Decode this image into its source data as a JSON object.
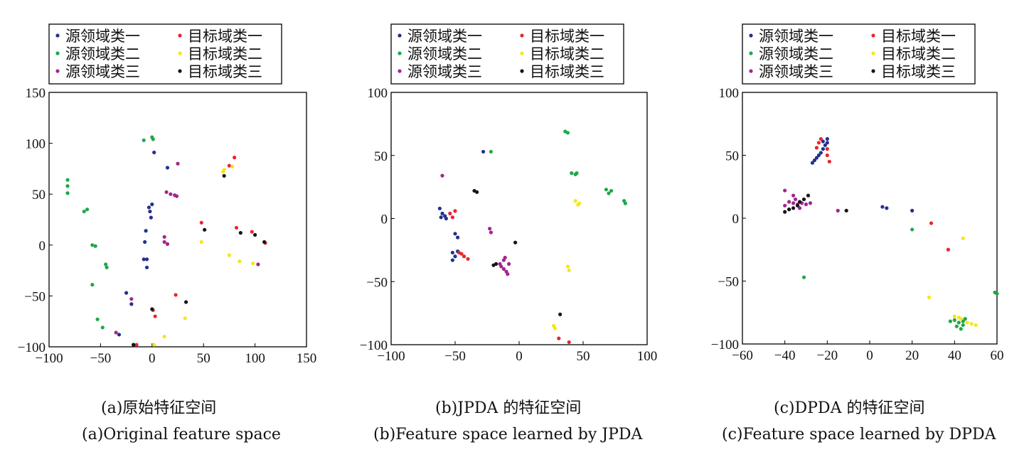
{
  "colors": {
    "src1": "#23318f",
    "src2": "#1fa84a",
    "src3": "#a3258f",
    "tgt1": "#e8262c",
    "tgt2": "#f4e61d",
    "tgt3": "#151515"
  },
  "chart_data": [
    {
      "type": "scatter",
      "xlim": [
        -100,
        150
      ],
      "ylim": [
        -100,
        150
      ],
      "xticks": [
        -100,
        -50,
        0,
        50,
        100,
        150
      ],
      "yticks": [
        -100,
        -50,
        0,
        50,
        100,
        150
      ],
      "tick_labels_x": [
        "−100",
        "−50",
        "0",
        "50",
        "100",
        "150"
      ],
      "tick_labels_y": [
        "−100",
        "−50",
        "0",
        "50",
        "100",
        "150"
      ],
      "legend_position": "top-outside",
      "caption_zh": "(a)原始特征空间",
      "caption_en": "(a)Original feature space",
      "series": [
        {
          "name": "源领域类一",
          "color_key": "src1",
          "points": [
            [
              2,
              91
            ],
            [
              15,
              76
            ],
            [
              -3,
              37
            ],
            [
              0,
              40
            ],
            [
              -2,
              33
            ],
            [
              -1,
              27
            ],
            [
              -6,
              14
            ],
            [
              -7,
              3
            ],
            [
              -8,
              -14
            ],
            [
              -5,
              -14
            ],
            [
              -5,
              -22
            ],
            [
              -25,
              -47
            ],
            [
              -20,
              -58
            ],
            [
              -32,
              -88
            ],
            [
              -18,
              -98
            ]
          ]
        },
        {
          "name": "源领域类二",
          "color_key": "src2",
          "points": [
            [
              -8,
              103
            ],
            [
              0,
              106
            ],
            [
              1,
              104
            ],
            [
              -82,
              64
            ],
            [
              -82,
              58
            ],
            [
              -82,
              51
            ],
            [
              -66,
              33
            ],
            [
              -63,
              35
            ],
            [
              -58,
              0
            ],
            [
              -55,
              -1
            ],
            [
              -45,
              -19
            ],
            [
              -44,
              -22
            ],
            [
              -58,
              -39
            ],
            [
              -53,
              -73
            ],
            [
              -48,
              -81
            ]
          ]
        },
        {
          "name": "源领域类三",
          "color_key": "src3",
          "points": [
            [
              25,
              80
            ],
            [
              14,
              52
            ],
            [
              18,
              50
            ],
            [
              22,
              49
            ],
            [
              24,
              48
            ],
            [
              12,
              8
            ],
            [
              12,
              3
            ],
            [
              15,
              1
            ],
            [
              -20,
              -53
            ],
            [
              -35,
              -86
            ],
            [
              103,
              -19
            ]
          ]
        },
        {
          "name": "目标域类一",
          "color_key": "tgt1",
          "points": [
            [
              80,
              86
            ],
            [
              75,
              78
            ],
            [
              48,
              22
            ],
            [
              82,
              17
            ],
            [
              97,
              13
            ],
            [
              110,
              2
            ],
            [
              23,
              -49
            ],
            [
              1,
              -64
            ],
            [
              3,
              -70
            ],
            [
              -15,
              -98
            ]
          ]
        },
        {
          "name": "目标域类二",
          "color_key": "tgt2",
          "points": [
            [
              78,
              77
            ],
            [
              70,
              74
            ],
            [
              69,
              72
            ],
            [
              48,
              3
            ],
            [
              75,
              -10
            ],
            [
              85,
              -16
            ],
            [
              98,
              -18
            ],
            [
              12,
              -90
            ],
            [
              32,
              -72
            ],
            [
              2,
              -98
            ]
          ]
        },
        {
          "name": "目标域类三",
          "color_key": "tgt3",
          "points": [
            [
              70,
              68
            ],
            [
              51,
              15
            ],
            [
              86,
              12
            ],
            [
              100,
              10
            ],
            [
              109,
              3
            ],
            [
              0,
              -63
            ],
            [
              33,
              -56
            ],
            [
              -18,
              -98
            ]
          ]
        }
      ]
    },
    {
      "type": "scatter",
      "xlim": [
        -100,
        100
      ],
      "ylim": [
        -100,
        100
      ],
      "xticks": [
        -100,
        -50,
        0,
        50,
        100
      ],
      "yticks": [
        -100,
        -50,
        0,
        50,
        100
      ],
      "tick_labels_x": [
        "−100",
        "−50",
        "0",
        "50",
        "100"
      ],
      "tick_labels_y": [
        "−100",
        "−50",
        "0",
        "50",
        "100"
      ],
      "legend_position": "top-outside",
      "caption_zh": "(b)JPDA 的特征空间",
      "caption_en": "(b)Feature space learned by JPDA",
      "series": [
        {
          "name": "源领域类一",
          "color_key": "src1",
          "points": [
            [
              -28,
              53
            ],
            [
              -62,
              8
            ],
            [
              -60,
              4
            ],
            [
              -58,
              2
            ],
            [
              -61,
              1
            ],
            [
              -57,
              0
            ],
            [
              -50,
              -12
            ],
            [
              -48,
              -15
            ],
            [
              -52,
              -27
            ],
            [
              -50,
              -30
            ],
            [
              -48,
              -26
            ],
            [
              -52,
              -33
            ]
          ]
        },
        {
          "name": "源领域类二",
          "color_key": "src2",
          "points": [
            [
              -22,
              53
            ],
            [
              36,
              69
            ],
            [
              38,
              68
            ],
            [
              41,
              36
            ],
            [
              44,
              35
            ],
            [
              45,
              36
            ],
            [
              68,
              23
            ],
            [
              70,
              20
            ],
            [
              72,
              22
            ],
            [
              82,
              14
            ],
            [
              83,
              12
            ]
          ]
        },
        {
          "name": "源领域类三",
          "color_key": "src3",
          "points": [
            [
              -60,
              34
            ],
            [
              -23,
              -8
            ],
            [
              -22,
              -11
            ],
            [
              -12,
              -33
            ],
            [
              -14,
              -38
            ],
            [
              -10,
              -42
            ],
            [
              -12,
              -40
            ],
            [
              -8,
              -36
            ],
            [
              -11,
              -31
            ],
            [
              -15,
              -36
            ],
            [
              -9,
              -44
            ]
          ]
        },
        {
          "name": "目标域类一",
          "color_key": "tgt1",
          "points": [
            [
              -54,
              4
            ],
            [
              -50,
              6
            ],
            [
              -52,
              1
            ],
            [
              -47,
              -27
            ],
            [
              -43,
              -30
            ],
            [
              -40,
              -32
            ],
            [
              -45,
              -28
            ],
            [
              31,
              -95
            ],
            [
              39,
              -98
            ]
          ]
        },
        {
          "name": "目标域类二",
          "color_key": "tgt2",
          "points": [
            [
              44,
              14
            ],
            [
              47,
              12
            ],
            [
              46,
              11
            ],
            [
              38,
              -38
            ],
            [
              39,
              -41
            ],
            [
              27,
              -85
            ],
            [
              28,
              -87
            ]
          ]
        },
        {
          "name": "目标域类三",
          "color_key": "tgt3",
          "points": [
            [
              -35,
              22
            ],
            [
              -33,
              21
            ],
            [
              -3,
              -19
            ],
            [
              -18,
              -36
            ],
            [
              -20,
              -37
            ],
            [
              32,
              -76
            ]
          ]
        }
      ]
    },
    {
      "type": "scatter",
      "xlim": [
        -60,
        60
      ],
      "ylim": [
        -100,
        100
      ],
      "xticks": [
        -60,
        -40,
        -20,
        0,
        20,
        40,
        60
      ],
      "yticks": [
        -100,
        -50,
        0,
        50,
        100
      ],
      "tick_labels_x": [
        "−60",
        "−40",
        "−20",
        "0",
        "20",
        "40",
        "60"
      ],
      "tick_labels_y": [
        "−100",
        "−50",
        "0",
        "50",
        "100"
      ],
      "legend_position": "top-outside",
      "caption_zh": "(c)DPDA 的特征空间",
      "caption_en": "(c)Feature space learned by DPDA",
      "series": [
        {
          "name": "源领域类一",
          "color_key": "src1",
          "points": [
            [
              -20,
              63
            ],
            [
              -21,
              58
            ],
            [
              -22,
              55
            ],
            [
              -23,
              52
            ],
            [
              -24,
              50
            ],
            [
              -25,
              48
            ],
            [
              -26,
              46
            ],
            [
              -27,
              44
            ],
            [
              -20,
              60
            ],
            [
              -22,
              61
            ],
            [
              8,
              8
            ],
            [
              6,
              9
            ],
            [
              20,
              6
            ]
          ]
        },
        {
          "name": "源领域类二",
          "color_key": "src2",
          "points": [
            [
              -31,
              -47
            ],
            [
              20,
              -9
            ],
            [
              59,
              -59
            ],
            [
              60,
              -60
            ],
            [
              40,
              -81
            ],
            [
              42,
              -83
            ],
            [
              44,
              -85
            ],
            [
              43,
              -88
            ],
            [
              38,
              -82
            ],
            [
              45,
              -80
            ],
            [
              41,
              -86
            ],
            [
              44,
              -82
            ]
          ]
        },
        {
          "name": "源领域类三",
          "color_key": "src3",
          "points": [
            [
              -40,
              22
            ],
            [
              -40,
              10
            ],
            [
              -38,
              13
            ],
            [
              -36,
              12
            ],
            [
              -34,
              11
            ],
            [
              -32,
              12
            ],
            [
              -30,
              11
            ],
            [
              -28,
              12
            ],
            [
              -36,
              18
            ],
            [
              -35,
              15
            ],
            [
              -33,
              8
            ],
            [
              -38,
              7
            ],
            [
              -15,
              6
            ]
          ]
        },
        {
          "name": "目标域类一",
          "color_key": "tgt1",
          "points": [
            [
              -23,
              63
            ],
            [
              -24,
              60
            ],
            [
              -20,
              55
            ],
            [
              -20,
              50
            ],
            [
              -19,
              45
            ],
            [
              -25,
              56
            ],
            [
              29,
              -4
            ],
            [
              37,
              -25
            ]
          ]
        },
        {
          "name": "目标域类二",
          "color_key": "tgt2",
          "points": [
            [
              44,
              -16
            ],
            [
              28,
              -63
            ],
            [
              40,
              -78
            ],
            [
              43,
              -80
            ],
            [
              46,
              -83
            ],
            [
              48,
              -84
            ],
            [
              50,
              -85
            ],
            [
              42,
              -79
            ]
          ]
        },
        {
          "name": "目标域类三",
          "color_key": "tgt3",
          "points": [
            [
              -40,
              5
            ],
            [
              -38,
              7
            ],
            [
              -36,
              8
            ],
            [
              -33,
              13
            ],
            [
              -31,
              15
            ],
            [
              -29,
              18
            ],
            [
              -34,
              10
            ],
            [
              -11,
              6
            ]
          ]
        }
      ]
    }
  ]
}
